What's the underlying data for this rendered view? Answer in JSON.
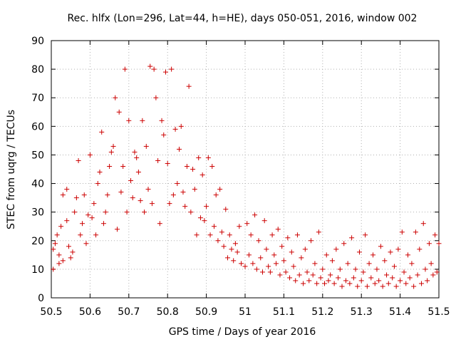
{
  "chart_data": {
    "type": "scatter",
    "title": "Rec. hlfx (Lon=296, Lat=44, h=HE), days 050-051, 2016, window 002",
    "xlabel": "GPS time / Days of year 2016",
    "ylabel": "STEC from uqrg / TECUs",
    "xlim": [
      50.5,
      51.5
    ],
    "ylim": [
      0,
      90
    ],
    "xticks": [
      "50.5",
      "50.6",
      "50.7",
      "50.8",
      "50.9",
      "51",
      "51.1",
      "51.2",
      "51.3",
      "51.4",
      "51.5"
    ],
    "yticks": [
      "0",
      "10",
      "20",
      "30",
      "40",
      "50",
      "60",
      "70",
      "80",
      "90"
    ],
    "grid": true,
    "legend": "none",
    "marker": "+",
    "color": "#cc0000",
    "series": [
      {
        "points": [
          [
            50.505,
            10
          ],
          [
            50.505,
            17
          ],
          [
            50.51,
            19
          ],
          [
            50.515,
            22
          ],
          [
            50.52,
            12
          ],
          [
            50.52,
            15
          ],
          [
            50.525,
            25
          ],
          [
            50.53,
            36
          ],
          [
            50.53,
            13
          ],
          [
            50.54,
            38
          ],
          [
            50.54,
            27
          ],
          [
            50.545,
            18
          ],
          [
            50.55,
            14
          ],
          [
            50.555,
            16
          ],
          [
            50.56,
            30
          ],
          [
            50.565,
            35
          ],
          [
            50.57,
            48
          ],
          [
            50.575,
            22
          ],
          [
            50.58,
            26
          ],
          [
            50.585,
            36
          ],
          [
            50.59,
            19
          ],
          [
            50.595,
            29
          ],
          [
            50.6,
            50
          ],
          [
            50.605,
            28
          ],
          [
            50.61,
            33
          ],
          [
            50.615,
            22
          ],
          [
            50.62,
            40
          ],
          [
            50.625,
            44
          ],
          [
            50.63,
            58
          ],
          [
            50.635,
            26
          ],
          [
            50.64,
            30
          ],
          [
            50.645,
            36
          ],
          [
            50.65,
            46
          ],
          [
            50.655,
            51
          ],
          [
            50.66,
            53
          ],
          [
            50.665,
            70
          ],
          [
            50.67,
            24
          ],
          [
            50.675,
            65
          ],
          [
            50.68,
            37
          ],
          [
            50.685,
            46
          ],
          [
            50.69,
            80
          ],
          [
            50.695,
            30
          ],
          [
            50.7,
            62
          ],
          [
            50.705,
            41
          ],
          [
            50.71,
            35
          ],
          [
            50.715,
            51
          ],
          [
            50.72,
            49
          ],
          [
            50.725,
            44
          ],
          [
            50.73,
            34
          ],
          [
            50.735,
            62
          ],
          [
            50.74,
            30
          ],
          [
            50.745,
            53
          ],
          [
            50.75,
            38
          ],
          [
            50.755,
            81
          ],
          [
            50.76,
            33
          ],
          [
            50.765,
            80
          ],
          [
            50.77,
            70
          ],
          [
            50.775,
            48
          ],
          [
            50.78,
            26
          ],
          [
            50.785,
            62
          ],
          [
            50.79,
            57
          ],
          [
            50.795,
            79
          ],
          [
            50.8,
            47
          ],
          [
            50.805,
            33
          ],
          [
            50.81,
            80
          ],
          [
            50.815,
            36
          ],
          [
            50.82,
            59
          ],
          [
            50.825,
            40
          ],
          [
            50.83,
            52
          ],
          [
            50.835,
            60
          ],
          [
            50.84,
            37
          ],
          [
            50.845,
            32
          ],
          [
            50.85,
            46
          ],
          [
            50.855,
            74
          ],
          [
            50.86,
            30
          ],
          [
            50.865,
            45
          ],
          [
            50.87,
            38
          ],
          [
            50.875,
            22
          ],
          [
            50.88,
            49
          ],
          [
            50.885,
            28
          ],
          [
            50.89,
            43
          ],
          [
            50.895,
            27
          ],
          [
            50.9,
            32
          ],
          [
            50.905,
            49
          ],
          [
            50.91,
            22
          ],
          [
            50.915,
            46
          ],
          [
            50.92,
            25
          ],
          [
            50.925,
            36
          ],
          [
            50.93,
            20
          ],
          [
            50.935,
            38
          ],
          [
            50.94,
            23
          ],
          [
            50.945,
            18
          ],
          [
            50.95,
            31
          ],
          [
            50.955,
            14
          ],
          [
            50.96,
            22
          ],
          [
            50.965,
            17
          ],
          [
            50.97,
            13
          ],
          [
            50.975,
            19
          ],
          [
            50.98,
            16
          ],
          [
            50.985,
            25
          ],
          [
            50.99,
            12
          ],
          [
            51.0,
            11
          ],
          [
            51.005,
            26
          ],
          [
            51.01,
            15
          ],
          [
            51.015,
            22
          ],
          [
            51.02,
            12
          ],
          [
            51.025,
            29
          ],
          [
            51.03,
            10
          ],
          [
            51.035,
            20
          ],
          [
            51.04,
            14
          ],
          [
            51.045,
            9
          ],
          [
            51.05,
            27
          ],
          [
            51.055,
            17
          ],
          [
            51.06,
            11
          ],
          [
            51.065,
            9
          ],
          [
            51.07,
            22
          ],
          [
            51.075,
            15
          ],
          [
            51.08,
            12
          ],
          [
            51.085,
            24
          ],
          [
            51.09,
            8
          ],
          [
            51.095,
            18
          ],
          [
            51.1,
            13
          ],
          [
            51.105,
            9
          ],
          [
            51.11,
            21
          ],
          [
            51.115,
            7
          ],
          [
            51.12,
            16
          ],
          [
            51.125,
            11
          ],
          [
            51.13,
            6
          ],
          [
            51.135,
            22
          ],
          [
            51.14,
            8
          ],
          [
            51.145,
            14
          ],
          [
            51.15,
            5
          ],
          [
            51.155,
            17
          ],
          [
            51.16,
            9
          ],
          [
            51.165,
            6
          ],
          [
            51.17,
            20
          ],
          [
            51.175,
            8
          ],
          [
            51.18,
            12
          ],
          [
            51.185,
            5
          ],
          [
            51.19,
            23
          ],
          [
            51.195,
            7
          ],
          [
            51.2,
            10
          ],
          [
            51.205,
            5
          ],
          [
            51.21,
            15
          ],
          [
            51.215,
            6
          ],
          [
            51.22,
            8
          ],
          [
            51.225,
            13
          ],
          [
            51.23,
            5
          ],
          [
            51.235,
            17
          ],
          [
            51.24,
            7
          ],
          [
            51.245,
            10
          ],
          [
            51.25,
            4
          ],
          [
            51.255,
            19
          ],
          [
            51.26,
            6
          ],
          [
            51.265,
            12
          ],
          [
            51.27,
            5
          ],
          [
            51.275,
            21
          ],
          [
            51.28,
            7
          ],
          [
            51.285,
            10
          ],
          [
            51.29,
            4
          ],
          [
            51.295,
            16
          ],
          [
            51.3,
            6
          ],
          [
            51.305,
            9
          ],
          [
            51.31,
            22
          ],
          [
            51.315,
            4
          ],
          [
            51.32,
            12
          ],
          [
            51.325,
            7
          ],
          [
            51.33,
            15
          ],
          [
            51.335,
            5
          ],
          [
            51.34,
            10
          ],
          [
            51.345,
            6
          ],
          [
            51.35,
            18
          ],
          [
            51.355,
            4
          ],
          [
            51.36,
            13
          ],
          [
            51.365,
            8
          ],
          [
            51.37,
            5
          ],
          [
            51.375,
            16
          ],
          [
            51.38,
            7
          ],
          [
            51.385,
            11
          ],
          [
            51.39,
            4
          ],
          [
            51.395,
            17
          ],
          [
            51.4,
            6
          ],
          [
            51.405,
            23
          ],
          [
            51.41,
            9
          ],
          [
            51.415,
            5
          ],
          [
            51.42,
            15
          ],
          [
            51.425,
            7
          ],
          [
            51.43,
            12
          ],
          [
            51.435,
            4
          ],
          [
            51.44,
            23
          ],
          [
            51.445,
            8
          ],
          [
            51.45,
            17
          ],
          [
            51.455,
            5
          ],
          [
            51.46,
            26
          ],
          [
            51.465,
            10
          ],
          [
            51.47,
            6
          ],
          [
            51.475,
            19
          ],
          [
            51.48,
            12
          ],
          [
            51.485,
            8
          ],
          [
            51.49,
            22
          ],
          [
            51.495,
            9
          ],
          [
            51.5,
            19
          ]
        ]
      }
    ]
  }
}
